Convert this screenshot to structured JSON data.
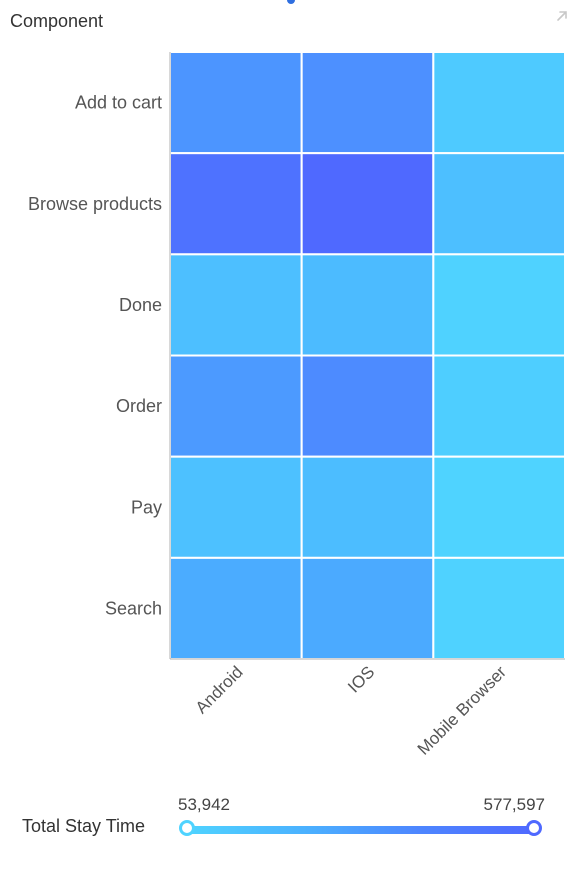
{
  "title": "Component",
  "colors": {
    "min": "#4fd3ff",
    "max": "#4f69ff",
    "grid": "#ffffff",
    "axis": "#b0b0b0"
  },
  "chart_data": {
    "type": "heatmap",
    "title": "",
    "x_categories": [
      "Android",
      "IOS",
      "Mobile Browser"
    ],
    "y_categories": [
      "Add to cart",
      "Browse products",
      "Done",
      "Order",
      "Pay",
      "Search"
    ],
    "values": [
      [
        340000,
        360000,
        100000
      ],
      [
        520000,
        577597,
        160000
      ],
      [
        160000,
        180000,
        60000
      ],
      [
        320000,
        380000,
        80000
      ],
      [
        150000,
        170000,
        53942
      ],
      [
        250000,
        260000,
        60000
      ]
    ],
    "visual_map": {
      "label": "Total Stay Time",
      "min": 53942,
      "max": 577597,
      "min_label": "53,942",
      "max_label": "577,597"
    },
    "legend_position": "bottom"
  }
}
